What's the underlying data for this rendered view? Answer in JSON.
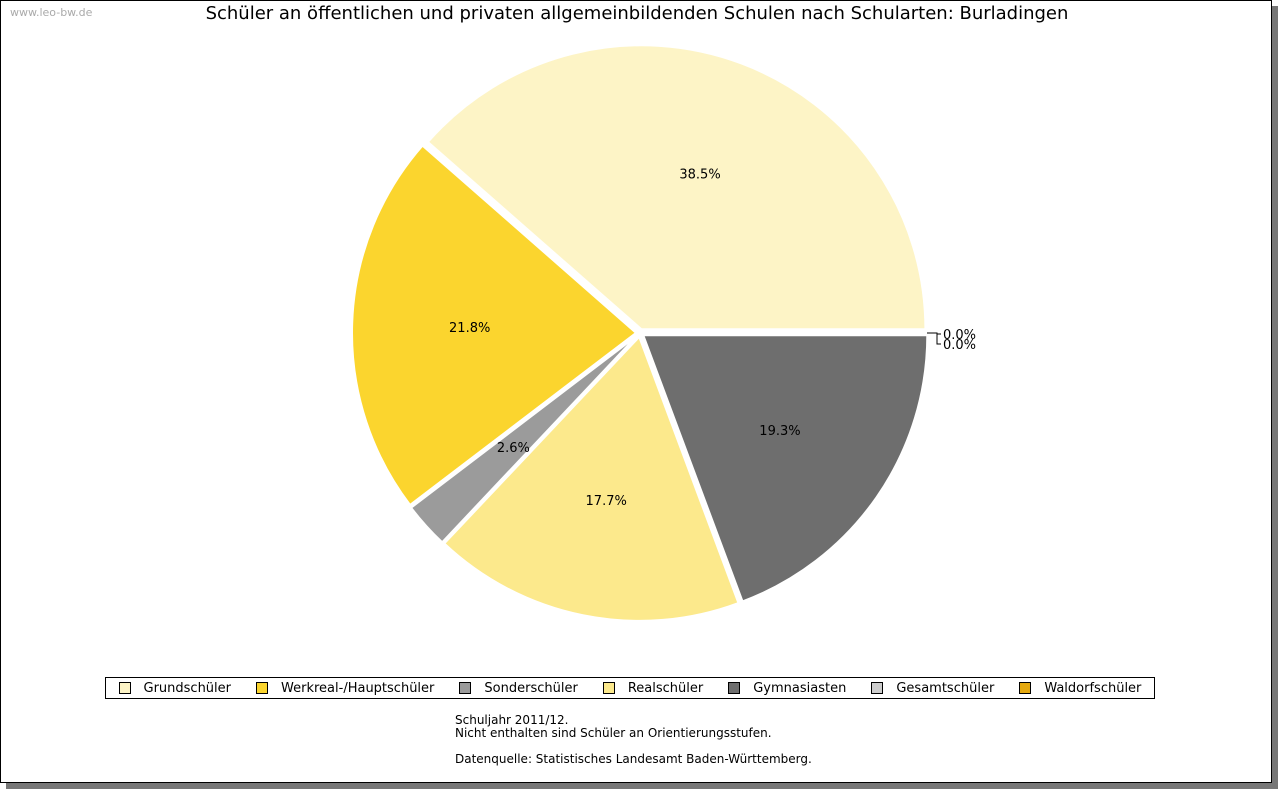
{
  "watermark": "www.leo-bw.de",
  "chart_data": {
    "type": "pie",
    "title": "Schüler an öffentlichen und privaten allgemeinbildenden Schulen nach Schularten: Burladingen",
    "slices": [
      {
        "name": "Grundschüler",
        "value": 38.5,
        "label": "38.5%",
        "color": "#FDF4C6"
      },
      {
        "name": "Werkreal-/Hauptschüler",
        "value": 21.8,
        "label": "21.8%",
        "color": "#FBD52E"
      },
      {
        "name": "Sonderschüler",
        "value": 2.6,
        "label": "2.6%",
        "color": "#9B9B9B"
      },
      {
        "name": "Realschüler",
        "value": 17.7,
        "label": "17.7%",
        "color": "#FCE98C"
      },
      {
        "name": "Gymnasiasten",
        "value": 19.3,
        "label": "19.3%",
        "color": "#6E6E6E"
      },
      {
        "name": "Gesamtschüler",
        "value": 0.0,
        "label": "0.0%",
        "color": "#CCCCCC"
      },
      {
        "name": "Waldorfschüler",
        "value": 0.0,
        "label": "0.0%",
        "color": "#E5A90F"
      }
    ],
    "legend_position": "bottom"
  },
  "notes": {
    "line1": "Schuljahr 2011/12.",
    "line2": "Nicht enthalten sind Schüler an Orientierungsstufen.",
    "line3": "Datenquelle: Statistisches Landesamt Baden-Württemberg."
  }
}
